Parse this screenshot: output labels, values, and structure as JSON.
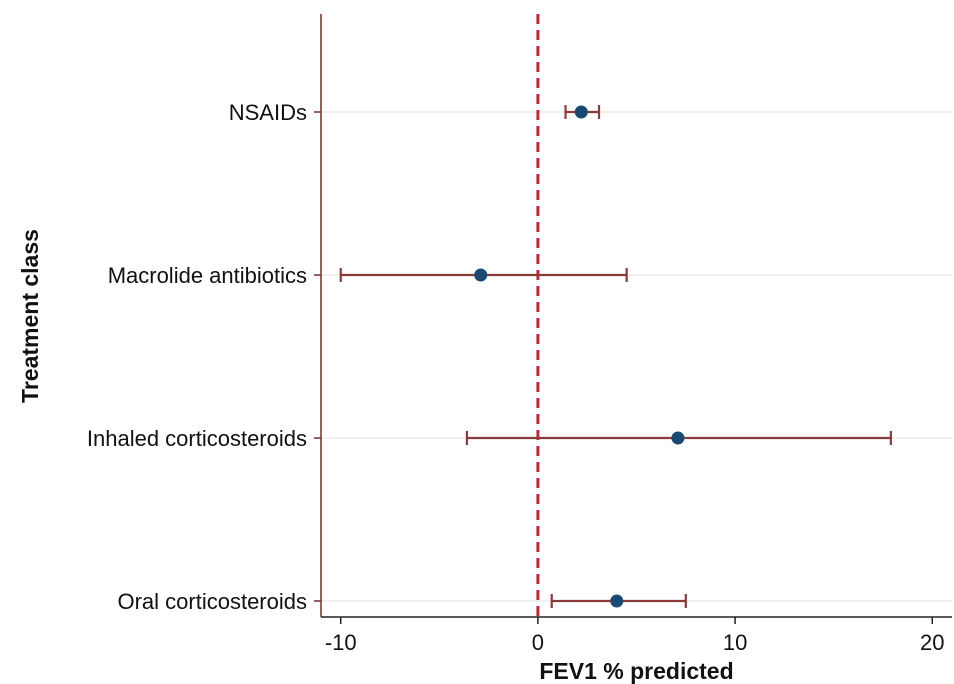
{
  "chart_data": {
    "type": "scatter",
    "subtype": "forest-plot",
    "title": "",
    "xlabel": "FEV1 % predicted",
    "ylabel": "Treatment class",
    "xlim": [
      -11,
      21
    ],
    "x_ticks": [
      -10,
      0,
      10,
      20
    ],
    "x_tick_labels": [
      "-10",
      "0",
      "10",
      "20"
    ],
    "reference_line_x": 0,
    "grid": "horizontal",
    "legend": "none",
    "colors": {
      "point": "#1a4a72",
      "error_bar": "#8b3a3a",
      "reference_line": "#c0283a",
      "axis": "#7a2a2a",
      "grid": "#ececec"
    },
    "categories": [
      "NSAIDs",
      "Macrolide antibiotics",
      "Inhaled corticosteroids",
      "Oral corticosteroids"
    ],
    "points": [
      {
        "label": "NSAIDs",
        "estimate": 2.2,
        "lower": 1.4,
        "upper": 3.1
      },
      {
        "label": "Macrolide antibiotics",
        "estimate": -2.9,
        "lower": -10.0,
        "upper": 4.5
      },
      {
        "label": "Inhaled corticosteroids",
        "estimate": 7.1,
        "lower": -3.6,
        "upper": 17.9
      },
      {
        "label": "Oral corticosteroids",
        "estimate": 4.0,
        "lower": 0.7,
        "upper": 7.5
      }
    ]
  }
}
